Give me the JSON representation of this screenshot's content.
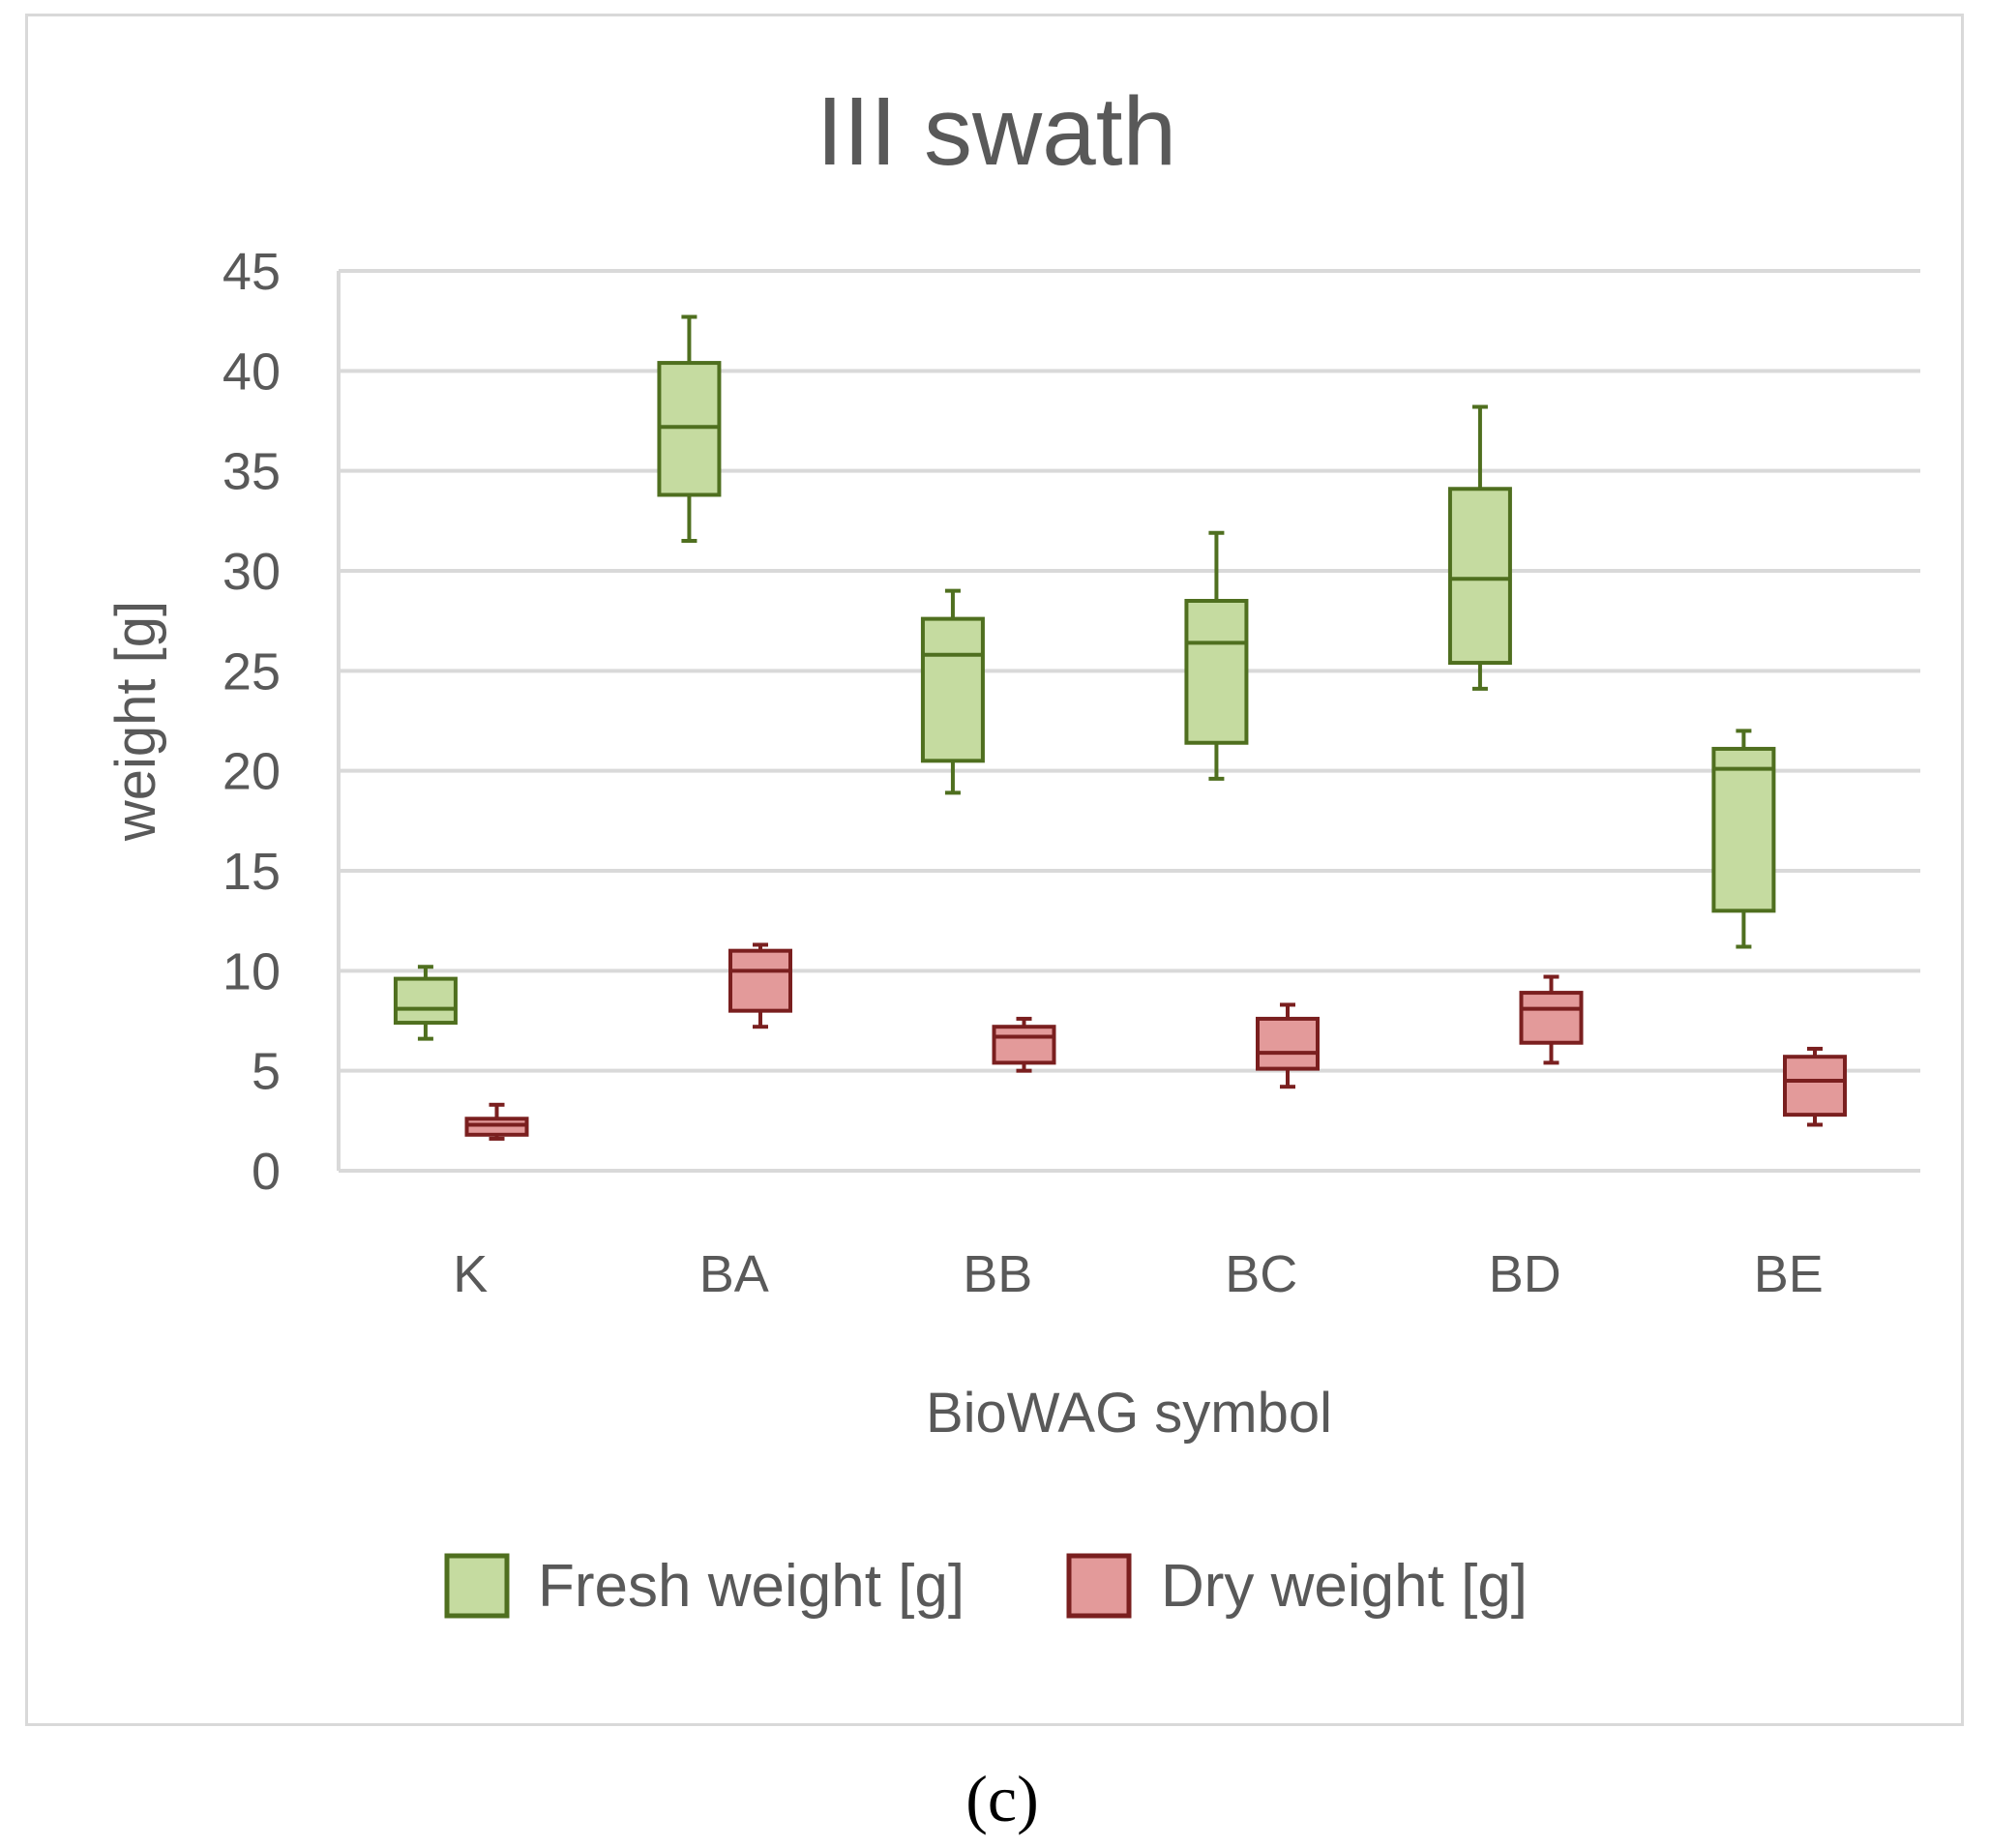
{
  "chart_data": {
    "type": "box",
    "title": "III swath",
    "xlabel": "BioWAG symbol",
    "ylabel": "weight [g]",
    "ylim": [
      0,
      45
    ],
    "yticks": [
      "0",
      "5",
      "10",
      "15",
      "20",
      "25",
      "30",
      "35",
      "40",
      "45"
    ],
    "categories": [
      "K",
      "BA",
      "BB",
      "BC",
      "BD",
      "BE"
    ],
    "grid": true,
    "legend_position": "bottom",
    "series": [
      {
        "name": "Fresh weight [g]",
        "fill": "#c5dba0",
        "stroke": "#4f6f1f",
        "boxes": [
          {
            "min": 6.6,
            "q1": 7.4,
            "median": 8.1,
            "q3": 9.6,
            "max": 10.2
          },
          {
            "min": 31.5,
            "q1": 33.8,
            "median": 37.2,
            "q3": 40.4,
            "max": 42.7
          },
          {
            "min": 18.9,
            "q1": 20.5,
            "median": 25.8,
            "q3": 27.6,
            "max": 29.0
          },
          {
            "min": 19.6,
            "q1": 21.4,
            "median": 26.4,
            "q3": 28.5,
            "max": 31.9
          },
          {
            "min": 24.1,
            "q1": 25.4,
            "median": 29.6,
            "q3": 34.1,
            "max": 38.2
          },
          {
            "min": 11.2,
            "q1": 13.0,
            "median": 20.1,
            "q3": 21.1,
            "max": 22.0
          }
        ]
      },
      {
        "name": "Dry weight [g]",
        "fill": "#e39a9a",
        "stroke": "#7a1f1f",
        "boxes": [
          {
            "min": 1.6,
            "q1": 1.8,
            "median": 2.3,
            "q3": 2.6,
            "max": 3.3
          },
          {
            "min": 7.2,
            "q1": 8.0,
            "median": 10.0,
            "q3": 11.0,
            "max": 11.3
          },
          {
            "min": 5.0,
            "q1": 5.4,
            "median": 6.7,
            "q3": 7.2,
            "max": 7.6
          },
          {
            "min": 4.2,
            "q1": 5.1,
            "median": 5.9,
            "q3": 7.6,
            "max": 8.3
          },
          {
            "min": 5.4,
            "q1": 6.4,
            "median": 8.1,
            "q3": 8.9,
            "max": 9.7
          },
          {
            "min": 2.3,
            "q1": 2.8,
            "median": 4.5,
            "q3": 5.7,
            "max": 6.1
          }
        ]
      }
    ],
    "gridline_color": "#d9d9d9"
  },
  "caption": "(c)"
}
